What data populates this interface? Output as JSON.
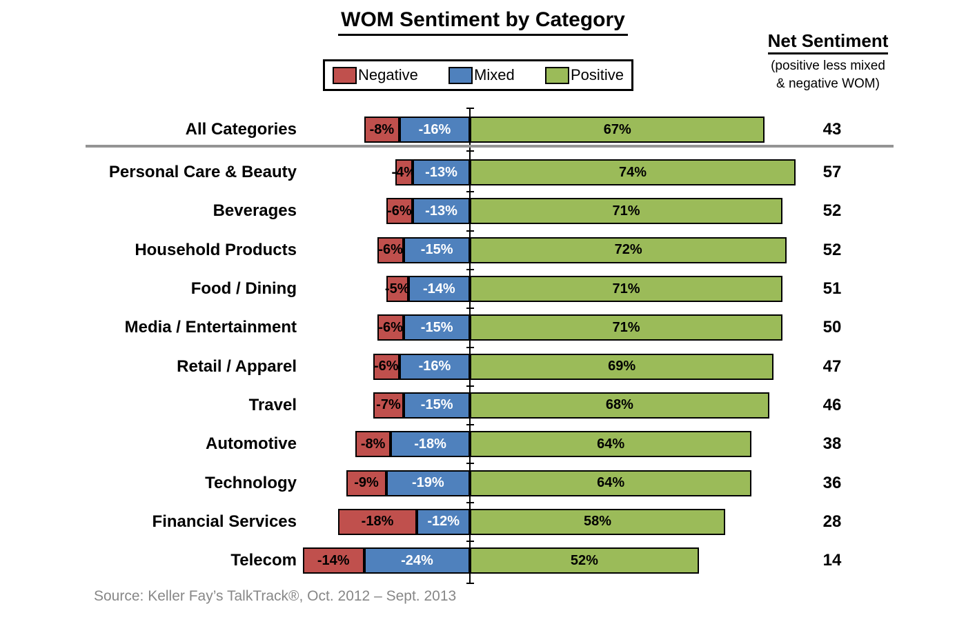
{
  "title": "WOM Sentiment by Category",
  "legend": {
    "items": [
      {
        "label": "Negative",
        "color": "#C0504D"
      },
      {
        "label": "Mixed",
        "color": "#4F81BD"
      },
      {
        "label": "Positive",
        "color": "#9BBB59"
      }
    ]
  },
  "net_sentiment_header": {
    "title": "Net Sentiment",
    "subtitle_lines": [
      "(positive less mixed",
      "& negative WOM)"
    ]
  },
  "source": "Source: Keller Fay’s TalkTrack®, Oct. 2012 – Sept. 2013",
  "chart_data": {
    "type": "bar",
    "variant": "horizontal-diverging-stacked",
    "title": "WOM Sentiment by Category",
    "legend_position": "top",
    "xlim": [
      -40,
      75
    ],
    "grid": false,
    "zero_axis_line": true,
    "value_labels": "inside",
    "colors": {
      "negative": "#C0504D",
      "mixed": "#4F81BD",
      "positive": "#9BBB59"
    },
    "label_text_colors": {
      "negative": "#000000",
      "mixed": "#FFFFFF",
      "positive": "#000000"
    },
    "categories": [
      "All Categories",
      "Personal Care & Beauty",
      "Beverages",
      "Household Products",
      "Food / Dining",
      "Media / Entertainment",
      "Retail / Apparel",
      "Travel",
      "Automotive",
      "Technology",
      "Financial Services",
      "Telecom"
    ],
    "series": [
      {
        "name": "Negative",
        "values": [
          -8,
          -4,
          -6,
          -6,
          -5,
          -6,
          -6,
          -7,
          -8,
          -9,
          -18,
          -14
        ]
      },
      {
        "name": "Mixed",
        "values": [
          -16,
          -13,
          -13,
          -15,
          -14,
          -15,
          -16,
          -15,
          -18,
          -19,
          -12,
          -24
        ]
      },
      {
        "name": "Positive",
        "values": [
          67,
          74,
          71,
          72,
          71,
          71,
          69,
          68,
          64,
          64,
          58,
          52
        ]
      }
    ],
    "net_sentiment": [
      43,
      57,
      52,
      52,
      51,
      50,
      47,
      46,
      38,
      36,
      28,
      14
    ]
  }
}
